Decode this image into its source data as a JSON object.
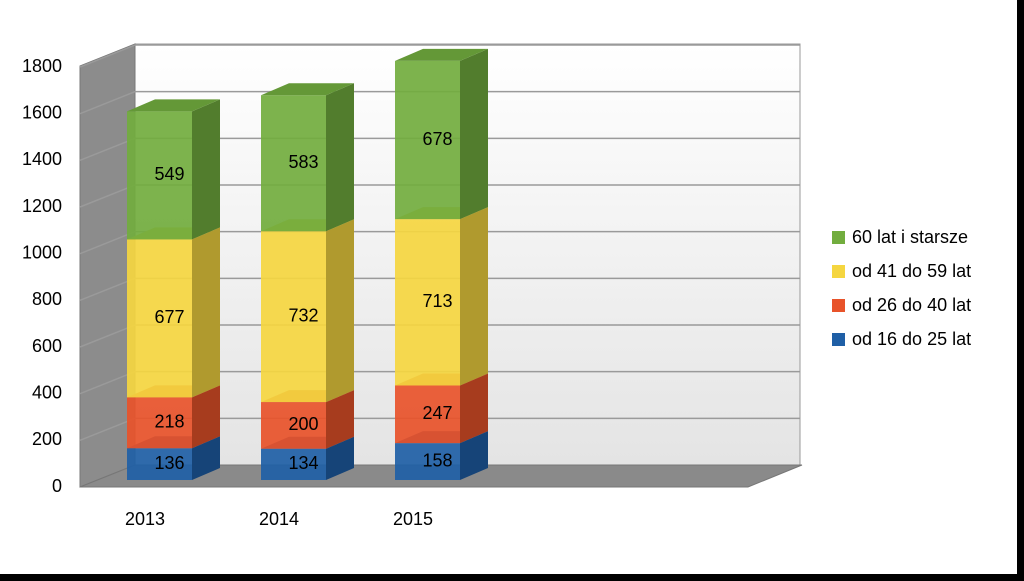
{
  "chart_data": {
    "type": "bar3d_stacked",
    "categories": [
      "2013",
      "2014",
      "2015"
    ],
    "series": [
      {
        "name": "od 16 do 25 lat",
        "color": "#1f5fa6",
        "values": [
          136,
          134,
          158
        ]
      },
      {
        "name": "od 26 do 40 lat",
        "color": "#e8532a",
        "values": [
          218,
          200,
          247
        ]
      },
      {
        "name": "od 41 do 59 lat",
        "color": "#f5d640",
        "values": [
          677,
          732,
          713
        ]
      },
      {
        "name": "60 lat i starsze",
        "color": "#72ad3e",
        "values": [
          549,
          583,
          678
        ]
      }
    ],
    "ylim": [
      0,
      1800
    ],
    "yticks": [
      0,
      200,
      400,
      600,
      800,
      1000,
      1200,
      1400,
      1600,
      1800
    ],
    "grid": true,
    "legend": "right"
  }
}
